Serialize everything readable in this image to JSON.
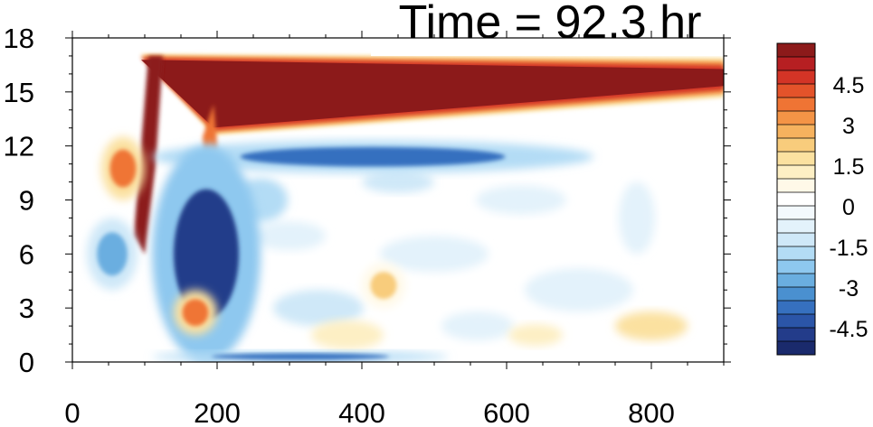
{
  "chart_data": {
    "type": "heatmap",
    "title": "Time = 92.3 hr",
    "xlabel": "",
    "ylabel": "",
    "xlim": [
      0,
      900
    ],
    "ylim": [
      0,
      18
    ],
    "x_ticks": [
      0,
      200,
      400,
      600,
      800
    ],
    "y_ticks": [
      0,
      3,
      6,
      9,
      12,
      15,
      18
    ],
    "grid": false,
    "colorbar": {
      "placement": "right",
      "levels": [
        -5.5,
        -5.0,
        -4.5,
        -4.0,
        -3.5,
        -3.0,
        -2.5,
        -2.0,
        -1.5,
        -1.0,
        -0.5,
        0.0,
        0.5,
        1.0,
        1.5,
        2.0,
        2.5,
        3.0,
        3.5,
        4.0,
        4.5,
        5.0,
        5.5
      ],
      "labeled_levels": [
        -4.5,
        -3,
        -1.5,
        0,
        1.5,
        3,
        4.5
      ],
      "labels": [
        "4.5",
        "3",
        "1.5",
        "0",
        "-1.5",
        "-3",
        "-4.5"
      ],
      "colors": [
        "#1a2a6c",
        "#233c8a",
        "#2b55a8",
        "#3670bf",
        "#4a90d0",
        "#6aaee0",
        "#8ec8ef",
        "#b3dcf5",
        "#cfe8f8",
        "#e3f2fb",
        "#f3f9fd",
        "#ffffff",
        "#fff9e8",
        "#fdefc4",
        "#fbe1a0",
        "#f8cc7c",
        "#f6b25e",
        "#f49446",
        "#ef7434",
        "#e4532a",
        "#d33426",
        "#b61f22",
        "#8c1a1a"
      ]
    },
    "features": [
      {
        "kind": "warm_band",
        "label": "upper warm band",
        "x": [
          95,
          900
        ],
        "y_top": [
          16.9,
          16.8
        ],
        "y_bottom": [
          12.6,
          14.9
        ],
        "peak": 6.0
      },
      {
        "kind": "warm_front",
        "label": "rising warm limb",
        "x": [
          95,
          110
        ],
        "y": [
          7.5,
          16.5
        ],
        "peak": 5.5
      },
      {
        "kind": "warm_spike",
        "label": "secondary warm spike",
        "x": [
          185,
          235
        ],
        "y": [
          1.5,
          14.2
        ],
        "peak": 5.0
      },
      {
        "kind": "cool_band",
        "label": "lower cool band",
        "x": [
          110,
          720
        ],
        "y": [
          10.5,
          12.3
        ],
        "peak": -4.0
      },
      {
        "kind": "cool_block",
        "label": "deep cool block",
        "x": [
          110,
          260
        ],
        "y": [
          0,
          12
        ],
        "peak": -5.0
      },
      {
        "kind": "cool_strip",
        "label": "surface cool strip",
        "x": [
          110,
          520
        ],
        "y": [
          0,
          0.6
        ],
        "peak": -4.0
      },
      {
        "kind": "warm_blob",
        "label": "left warm blob",
        "x": [
          40,
          100
        ],
        "y": [
          9,
          12.5
        ],
        "peak": 3.5
      },
      {
        "kind": "cool_blob",
        "label": "left cool blob",
        "x": [
          20,
          90
        ],
        "y": [
          4,
          8
        ],
        "peak": -3.0
      },
      {
        "kind": "warm_blob",
        "label": "mid warm blob",
        "x": [
          400,
          460
        ],
        "y": [
          3,
          5.5
        ],
        "peak": 2.0
      },
      {
        "kind": "warm_blob",
        "label": "lower warm blob",
        "x": [
          140,
          200
        ],
        "y": [
          1.5,
          4.0
        ],
        "peak": 3.5
      }
    ]
  }
}
